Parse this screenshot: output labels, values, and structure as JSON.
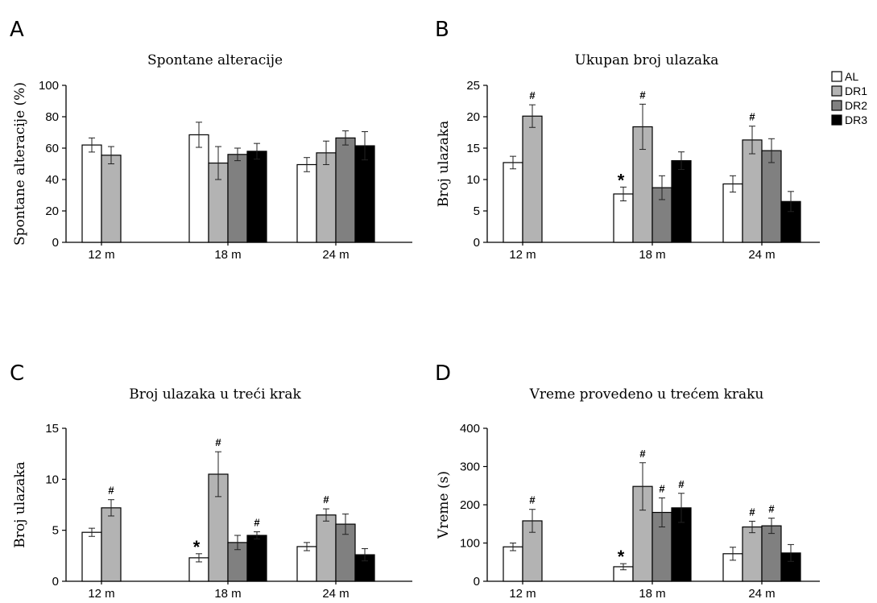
{
  "legend": {
    "items": [
      {
        "name": "AL",
        "color": "#ffffff"
      },
      {
        "name": "DR1",
        "color": "#b3b3b3"
      },
      {
        "name": "DR2",
        "color": "#808080"
      },
      {
        "name": "DR3",
        "color": "#000000"
      }
    ],
    "placement": "right of panel B"
  },
  "chart_data": [
    {
      "panel": "A",
      "type": "bar",
      "title": "Spontane alteracije",
      "xlabel": "",
      "ylabel": "Spontane alteracije (%)",
      "ylim": [
        0,
        100
      ],
      "yticks": [
        "0",
        "20",
        "40",
        "60",
        "80",
        "100"
      ],
      "categories": [
        "12 m",
        "18 m",
        "24 m"
      ],
      "grid": false,
      "series": [
        {
          "name": "AL",
          "values": [
            62,
            68.5,
            49.5
          ],
          "errors": [
            4.5,
            8,
            4.5
          ],
          "marks": [
            "",
            "",
            ""
          ]
        },
        {
          "name": "DR1",
          "values": [
            55.5,
            50.5,
            57
          ],
          "errors": [
            5.5,
            10.5,
            7.5
          ],
          "marks": [
            "",
            "",
            ""
          ]
        },
        {
          "name": "DR2",
          "values": [
            null,
            56,
            66.5
          ],
          "errors": [
            null,
            4,
            4.5
          ],
          "marks": [
            "",
            "",
            ""
          ]
        },
        {
          "name": "DR3",
          "values": [
            null,
            58,
            61.5
          ],
          "errors": [
            null,
            5,
            9
          ],
          "marks": [
            "",
            "",
            ""
          ]
        }
      ]
    },
    {
      "panel": "B",
      "type": "bar",
      "title": "Ukupan broj ulazaka",
      "xlabel": "",
      "ylabel": "Broj ulazaka",
      "ylim": [
        0,
        25
      ],
      "yticks": [
        "0",
        "5",
        "10",
        "15",
        "20",
        "25"
      ],
      "categories": [
        "12 m",
        "18 m",
        "24 m"
      ],
      "grid": false,
      "series": [
        {
          "name": "AL",
          "values": [
            12.7,
            7.7,
            9.3
          ],
          "errors": [
            1,
            1.1,
            1.3
          ],
          "marks": [
            "",
            "*",
            ""
          ]
        },
        {
          "name": "DR1",
          "values": [
            20.1,
            18.4,
            16.3
          ],
          "errors": [
            1.8,
            3.6,
            2.2
          ],
          "marks": [
            "#",
            "#",
            "#"
          ]
        },
        {
          "name": "DR2",
          "values": [
            null,
            8.7,
            14.6
          ],
          "errors": [
            null,
            1.9,
            1.9
          ],
          "marks": [
            "",
            "",
            ""
          ]
        },
        {
          "name": "DR3",
          "values": [
            null,
            13,
            6.5
          ],
          "errors": [
            null,
            1.4,
            1.6
          ],
          "marks": [
            "",
            "",
            ""
          ]
        }
      ]
    },
    {
      "panel": "C",
      "type": "bar",
      "title": "Broj ulazaka u treći krak",
      "xlabel": "",
      "ylabel": "Broj ulazaka",
      "ylim": [
        0,
        15
      ],
      "yticks": [
        "0",
        "5",
        "10",
        "15"
      ],
      "categories": [
        "12 m",
        "18 m",
        "24 m"
      ],
      "grid": false,
      "series": [
        {
          "name": "AL",
          "values": [
            4.8,
            2.3,
            3.4
          ],
          "errors": [
            0.4,
            0.4,
            0.4
          ],
          "marks": [
            "",
            "*",
            ""
          ]
        },
        {
          "name": "DR1",
          "values": [
            7.2,
            10.5,
            6.5
          ],
          "errors": [
            0.8,
            2.2,
            0.6
          ],
          "marks": [
            "#",
            "#",
            "#"
          ]
        },
        {
          "name": "DR2",
          "values": [
            null,
            3.8,
            5.6
          ],
          "errors": [
            null,
            0.7,
            1
          ],
          "marks": [
            "",
            "",
            ""
          ]
        },
        {
          "name": "DR3",
          "values": [
            null,
            4.5,
            2.6
          ],
          "errors": [
            null,
            0.35,
            0.6
          ],
          "marks": [
            "",
            "#",
            ""
          ]
        }
      ]
    },
    {
      "panel": "D",
      "type": "bar",
      "title": "Vreme provedeno u trećem kraku",
      "xlabel": "",
      "ylabel": "Vreme (s)",
      "ylim": [
        0,
        400
      ],
      "yticks": [
        "0",
        "100",
        "200",
        "300",
        "400"
      ],
      "categories": [
        "12 m",
        "18 m",
        "24 m"
      ],
      "grid": false,
      "series": [
        {
          "name": "AL",
          "values": [
            90,
            38,
            72
          ],
          "errors": [
            10,
            8,
            17
          ],
          "marks": [
            "",
            "*",
            ""
          ]
        },
        {
          "name": "DR1",
          "values": [
            158,
            248,
            142
          ],
          "errors": [
            30,
            62,
            15
          ],
          "marks": [
            "#",
            "#",
            "#"
          ]
        },
        {
          "name": "DR2",
          "values": [
            null,
            180,
            145
          ],
          "errors": [
            null,
            38,
            20
          ],
          "marks": [
            "",
            "#",
            "#"
          ]
        },
        {
          "name": "DR3",
          "values": [
            null,
            192,
            74
          ],
          "errors": [
            null,
            38,
            22
          ],
          "marks": [
            "",
            "#",
            ""
          ]
        }
      ]
    }
  ]
}
